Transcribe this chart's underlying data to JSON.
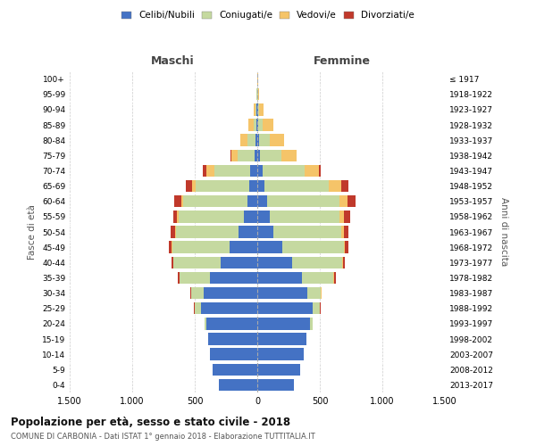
{
  "age_groups": [
    "0-4",
    "5-9",
    "10-14",
    "15-19",
    "20-24",
    "25-29",
    "30-34",
    "35-39",
    "40-44",
    "45-49",
    "50-54",
    "55-59",
    "60-64",
    "65-69",
    "70-74",
    "75-79",
    "80-84",
    "85-89",
    "90-94",
    "95-99",
    "100+"
  ],
  "birth_years": [
    "2013-2017",
    "2008-2012",
    "2003-2007",
    "1998-2002",
    "1993-1997",
    "1988-1992",
    "1983-1987",
    "1978-1982",
    "1973-1977",
    "1968-1972",
    "1963-1967",
    "1958-1962",
    "1953-1957",
    "1948-1952",
    "1943-1947",
    "1938-1942",
    "1933-1937",
    "1928-1932",
    "1923-1927",
    "1918-1922",
    "≤ 1917"
  ],
  "colors": {
    "celibi": "#4472C4",
    "coniugati": "#c5d9a0",
    "vedovi": "#f5c469",
    "divorziati": "#c0392b"
  },
  "maschi": {
    "celibi": [
      310,
      360,
      380,
      390,
      410,
      450,
      430,
      380,
      290,
      220,
      150,
      110,
      80,
      65,
      55,
      25,
      12,
      5,
      4,
      3,
      2
    ],
    "coniugati": [
      0,
      0,
      0,
      5,
      15,
      50,
      100,
      240,
      380,
      460,
      500,
      520,
      510,
      430,
      290,
      130,
      65,
      25,
      8,
      2,
      0
    ],
    "vedovi": [
      0,
      0,
      0,
      0,
      0,
      2,
      2,
      5,
      5,
      5,
      10,
      10,
      20,
      30,
      60,
      55,
      60,
      45,
      15,
      4,
      1
    ],
    "divorziati": [
      0,
      0,
      0,
      0,
      0,
      2,
      5,
      10,
      10,
      25,
      30,
      35,
      55,
      50,
      30,
      5,
      0,
      0,
      0,
      0,
      0
    ]
  },
  "femmine": {
    "celibi": [
      290,
      340,
      370,
      390,
      420,
      440,
      400,
      360,
      280,
      200,
      130,
      100,
      80,
      60,
      40,
      22,
      12,
      7,
      5,
      3,
      2
    ],
    "coniugati": [
      0,
      0,
      0,
      5,
      20,
      60,
      110,
      250,
      400,
      490,
      540,
      560,
      580,
      510,
      340,
      170,
      85,
      35,
      10,
      2,
      0
    ],
    "vedovi": [
      0,
      0,
      0,
      0,
      0,
      2,
      2,
      5,
      5,
      12,
      20,
      35,
      60,
      100,
      110,
      120,
      120,
      90,
      35,
      8,
      2
    ],
    "divorziati": [
      0,
      0,
      0,
      0,
      0,
      2,
      5,
      10,
      15,
      30,
      40,
      50,
      65,
      60,
      20,
      5,
      0,
      0,
      0,
      0,
      0
    ]
  },
  "title": "Popolazione per età, sesso e stato civile - 2018",
  "subtitle": "COMUNE DI CARBONIA - Dati ISTAT 1° gennaio 2018 - Elaborazione TUTTITALIA.IT",
  "xlabel_left": "Maschi",
  "xlabel_right": "Femmine",
  "ylabel_left": "Fasce di età",
  "ylabel_right": "Anni di nascita",
  "xlim": 1500,
  "legend_labels": [
    "Celibi/Nubili",
    "Coniugati/e",
    "Vedovi/e",
    "Divorziati/e"
  ],
  "background_color": "#ffffff",
  "grid_color": "#cccccc"
}
